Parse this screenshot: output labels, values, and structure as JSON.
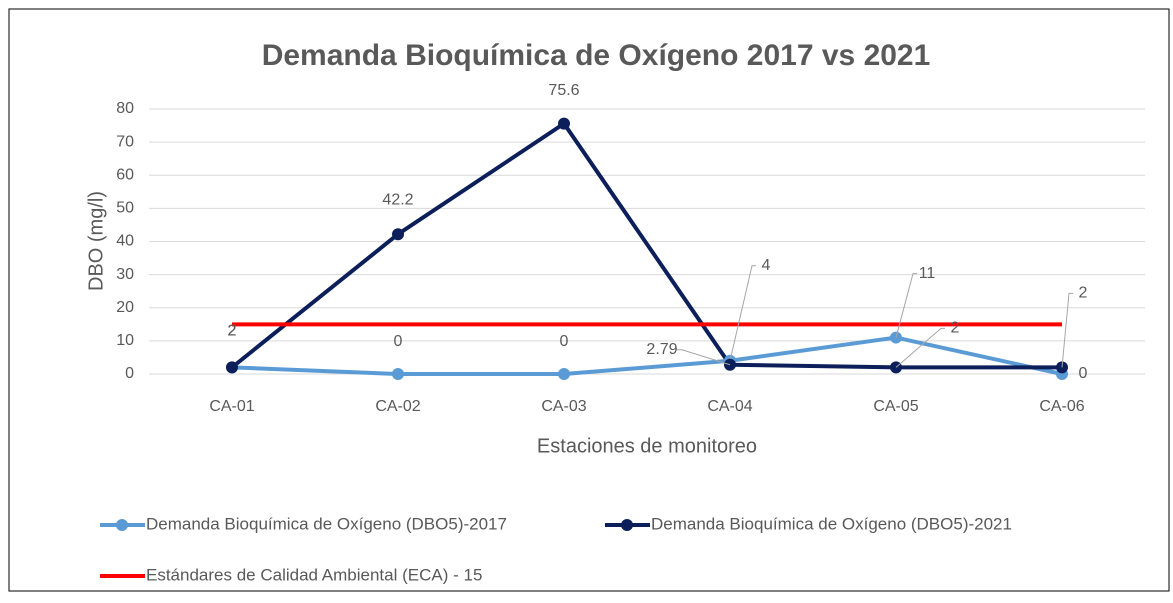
{
  "chart_data": {
    "type": "line",
    "title": "Demanda Bioquímica de Oxígeno 2017 vs 2021",
    "y_label": "DBO (mg/l)",
    "x_label": "Estaciones de monitoreo",
    "categories": [
      "CA-01",
      "CA-02",
      "CA-03",
      "CA-04",
      "CA-05",
      "CA-06"
    ],
    "series": [
      {
        "name": "Demanda Bioquímica de Oxígeno (DBO5)-2017",
        "color": "#5b9bd5",
        "markers": true,
        "data_labels": true,
        "values": [
          2,
          0,
          0,
          4,
          11,
          0
        ]
      },
      {
        "name": "Demanda Bioquímica de Oxígeno (DBO5)-2021",
        "color": "#0c1f5a",
        "markers": true,
        "data_labels": true,
        "values": [
          2,
          42.2,
          75.6,
          2.79,
          2,
          2
        ]
      },
      {
        "name": "Estándares de Calidad Ambiental (ECA) - 15",
        "color": "#ff0000",
        "markers": false,
        "data_labels": false,
        "values": [
          15,
          15,
          15,
          15,
          15,
          15
        ]
      }
    ],
    "ylim": [
      0,
      80
    ],
    "yticks": [
      0,
      10,
      20,
      30,
      40,
      50,
      60,
      70,
      80
    ],
    "grid": true,
    "legend": "bottom"
  }
}
